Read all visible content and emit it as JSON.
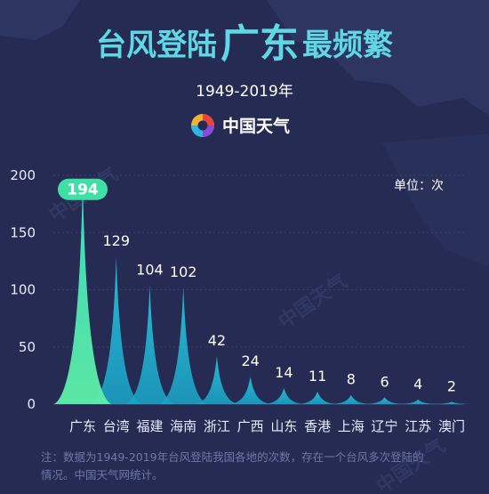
{
  "title": {
    "part1": "台风登陆",
    "part2": "广东",
    "part3": "最频繁"
  },
  "subtitle": "1949-2019年",
  "brand": {
    "name": "中国天气",
    "logo_icon": "weather-swirl-logo-icon"
  },
  "unit_label": "单位：次",
  "note": {
    "line1": "注：数据为1949-2019年台风登陆我国各地的次数，存在一个台风多次登陆的",
    "line2": "情况。中国天气网统计。"
  },
  "watermark": "中国天气",
  "colors": {
    "background": "#252b52",
    "peak_top": "#29c8e0",
    "peak_bottom": "#5df0b0",
    "highlight_badge": "#3ee0a6",
    "title": "#5fd8e4"
  },
  "chart_data": {
    "type": "area",
    "categories": [
      "广东",
      "台湾",
      "福建",
      "海南",
      "浙江",
      "广西",
      "山东",
      "香港",
      "上海",
      "辽宁",
      "江苏",
      "澳门"
    ],
    "values": [
      194,
      129,
      104,
      102,
      42,
      24,
      14,
      11,
      8,
      6,
      4,
      2
    ],
    "value_labels": [
      "194",
      "129",
      "104",
      "102",
      "42",
      "24",
      "14",
      "11",
      "8",
      "6",
      "4",
      "2"
    ],
    "yticks": [
      "0",
      "50",
      "100",
      "150",
      "200"
    ],
    "ylim": [
      0,
      200
    ],
    "grid": true,
    "highlight_index": 0
  }
}
